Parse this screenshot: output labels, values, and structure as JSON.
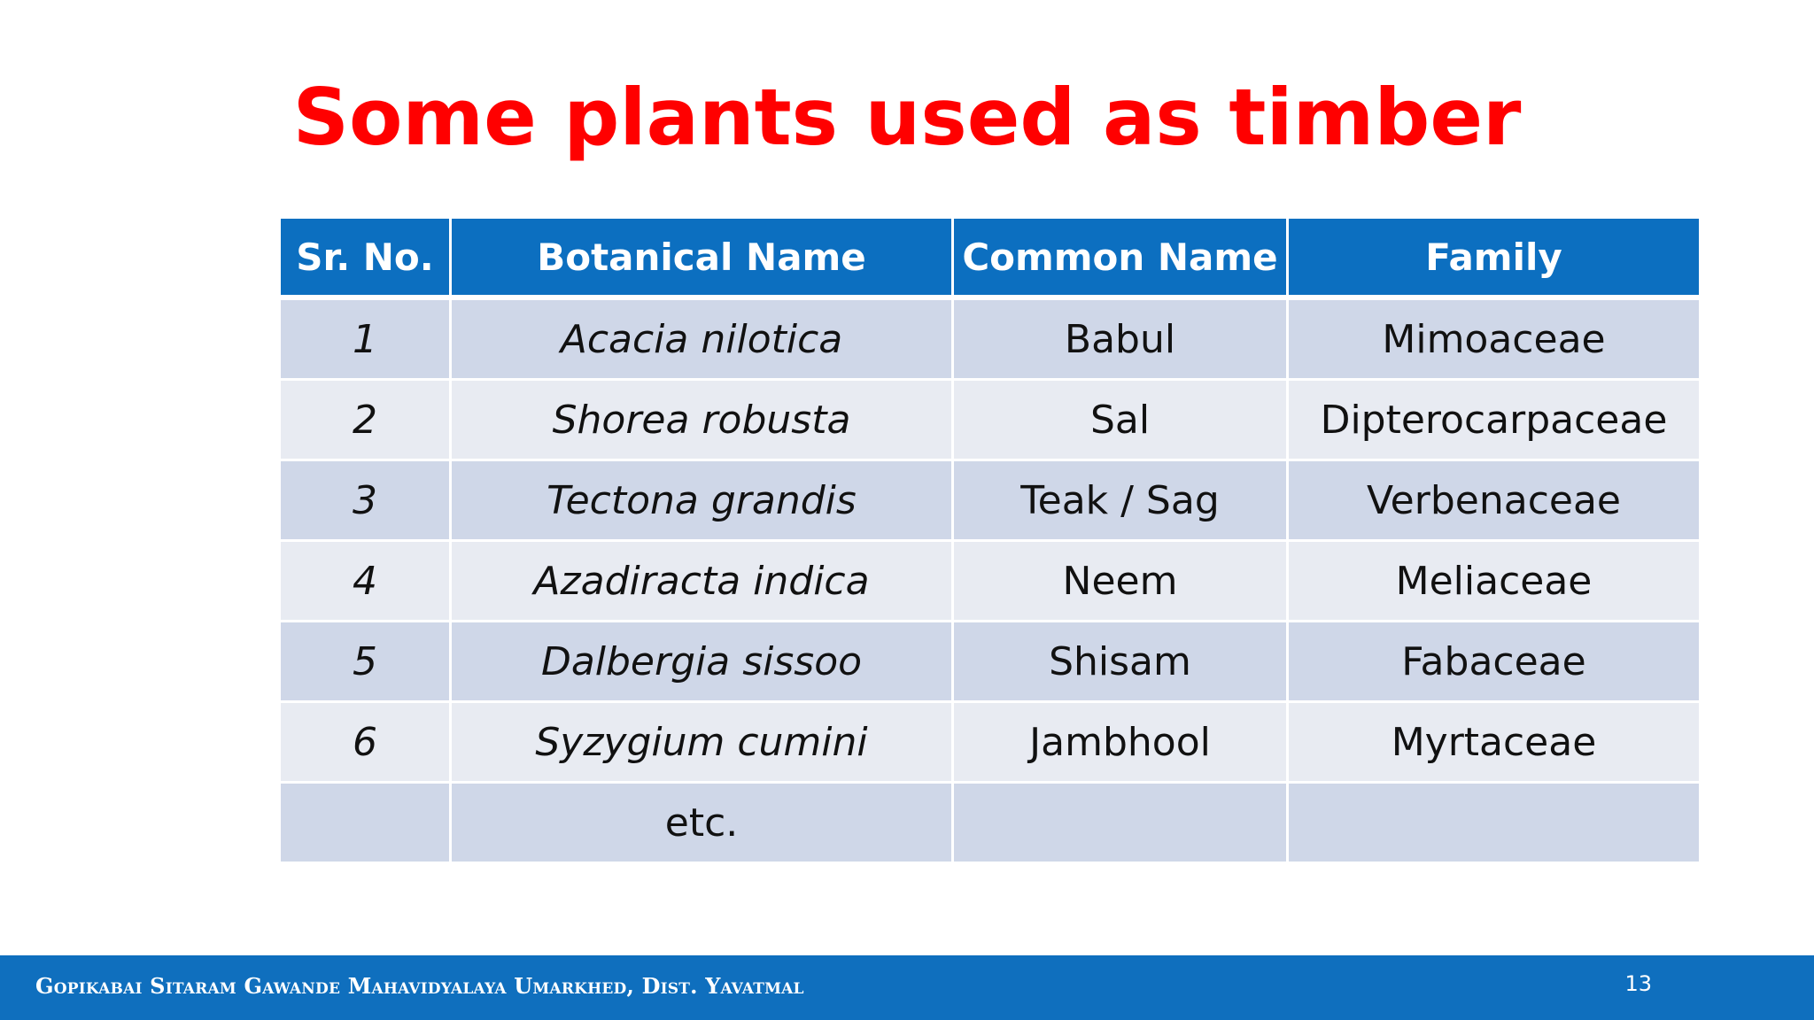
{
  "slide": {
    "title": "Some plants used as timber",
    "page_number": "13",
    "footer": "Gopikabai Sitaram Gawande Mahavidyalaya Umarkhed, Dist. Yavatmal"
  },
  "table": {
    "headers": [
      "Sr. No.",
      "Botanical Name",
      "Common Name",
      "Family"
    ],
    "rows": [
      {
        "sr": "1",
        "botanical": "Acacia nilotica",
        "common": "Babul",
        "family": "Mimoaceae"
      },
      {
        "sr": "2",
        "botanical": "Shorea robusta",
        "common": "Sal",
        "family": "Dipterocarpaceae"
      },
      {
        "sr": "3",
        "botanical": "Tectona grandis",
        "common": "Teak / Sag",
        "family": "Verbenaceae"
      },
      {
        "sr": "4",
        "botanical": "Azadiracta indica",
        "common": "Neem",
        "family": "Meliaceae"
      },
      {
        "sr": "5",
        "botanical": "Dalbergia sissoo",
        "common": "Shisam",
        "family": "Fabaceae"
      },
      {
        "sr": "6",
        "botanical": "Syzygium cumini",
        "common": "Jambhool",
        "family": "Myrtaceae"
      },
      {
        "sr": "",
        "botanical": "etc.",
        "common": "",
        "family": ""
      }
    ]
  },
  "colors": {
    "title": "#ff0000",
    "header_bg": "#0c6fc0",
    "row_odd_bg": "#cfd7e8",
    "row_even_bg": "#e8ebf2",
    "footer_bg": "#0f6fbe"
  }
}
